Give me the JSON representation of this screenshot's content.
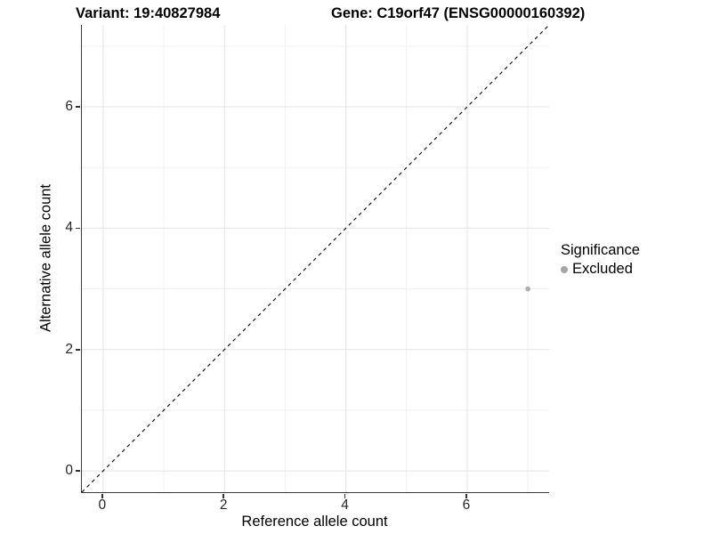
{
  "titles": {
    "variant": "Variant: 19:40827984",
    "gene": "Gene: C19orf47 (ENSG00000160392)"
  },
  "legend": {
    "title": "Significance",
    "items": [
      {
        "label": "Excluded",
        "color": "#a6a6a6"
      }
    ]
  },
  "colors": {
    "grid_major": "#e4e4e4",
    "grid_minor": "#f1f1f1",
    "axis_line": "#3a3a3a",
    "tick_label": "#262626",
    "reference_line": "#000000",
    "point": "#adadad"
  },
  "chart_data": {
    "type": "scatter",
    "title_left": "Variant: 19:40827984",
    "title_right": "Gene: C19orf47 (ENSG00000160392)",
    "xlabel": "Reference allele count",
    "ylabel": "Alternative allele count",
    "xlim": [
      -0.35,
      7.35
    ],
    "ylim": [
      -0.35,
      7.35
    ],
    "x_ticks": [
      0,
      2,
      4,
      6
    ],
    "y_ticks": [
      0,
      2,
      4,
      6
    ],
    "x_minor_gridlines": [
      1,
      3,
      5,
      7
    ],
    "y_minor_gridlines": [
      1,
      3,
      5,
      7
    ],
    "grid": true,
    "legend_position": "right",
    "reference_line": {
      "type": "identity y=x",
      "style": "dashed",
      "from": [
        -0.35,
        -0.35
      ],
      "to": [
        7.35,
        7.35
      ]
    },
    "series": [
      {
        "name": "Excluded",
        "color": "#adadad",
        "points": [
          {
            "x": 7,
            "y": 3
          }
        ]
      }
    ]
  }
}
